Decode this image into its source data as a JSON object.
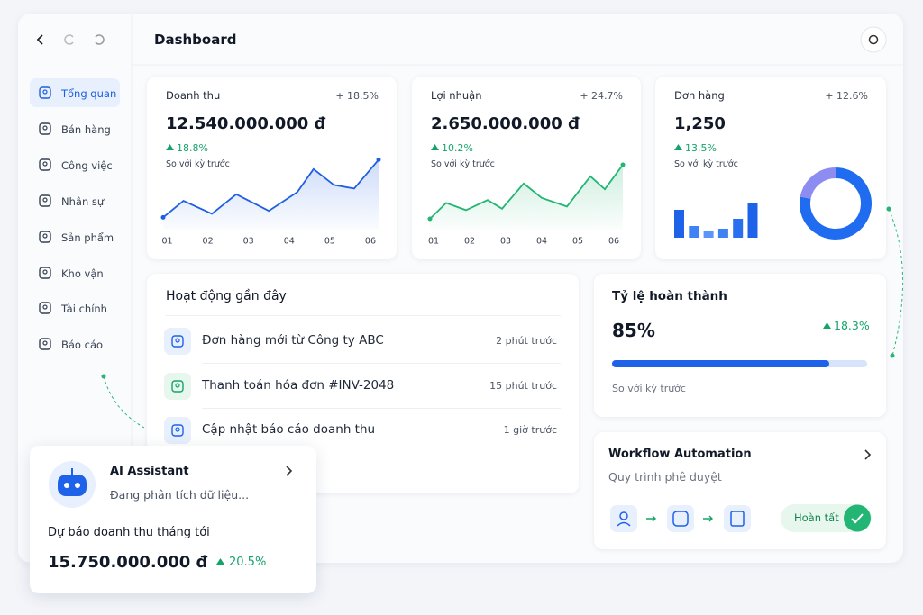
{
  "header": {
    "title": "Dashboard"
  },
  "sidebar": {
    "items": [
      "Tổng quan",
      "Bán hàng",
      "Công việc",
      "Nhân sự",
      "Sản phẩm",
      "Kho vận",
      "Tài chính",
      "Báo cáo"
    ]
  },
  "cards": [
    {
      "label": "Doanh thu",
      "change": "+ 18.5%",
      "value": "12.540.000.000 đ",
      "delta": "18.8%",
      "note": "So với kỳ trước",
      "chart": {
        "type": "line",
        "color": "#1f5fe0",
        "x": [
          0.9,
          1.4,
          2.1,
          2.7,
          3.5,
          4.2,
          4.6,
          5.1,
          5.6,
          6.2
        ],
        "values": [
          17,
          40,
          22,
          49,
          26,
          52,
          84,
          62,
          57,
          97
        ],
        "xlim": [
          0.9,
          6.2
        ],
        "ylim": [
          0,
          100
        ],
        "xticks": [
          {
            "value": 1,
            "label": "01"
          },
          {
            "value": 2,
            "label": "02"
          },
          {
            "value": 3,
            "label": "03"
          },
          {
            "value": 4,
            "label": "04"
          },
          {
            "value": 5,
            "label": "05"
          },
          {
            "value": 6,
            "label": "06"
          }
        ]
      }
    },
    {
      "label": "Lợi nhuận",
      "change": "+ 24.7%",
      "value": "2.650.000.000 đ",
      "delta": "10.2%",
      "note": "So với kỳ trước",
      "chart": {
        "type": "line",
        "color": "#22b573",
        "x": [
          0.9,
          1.35,
          1.9,
          2.5,
          2.9,
          3.5,
          4.0,
          4.7,
          5.35,
          5.75,
          6.25
        ],
        "values": [
          15,
          37,
          27,
          41,
          29,
          64,
          44,
          32,
          74,
          56,
          90
        ],
        "xlim": [
          0.9,
          6.25
        ],
        "ylim": [
          0,
          100
        ],
        "xticks": [
          {
            "value": 1,
            "label": "01"
          },
          {
            "value": 2,
            "label": "02"
          },
          {
            "value": 3,
            "label": "03"
          },
          {
            "value": 4,
            "label": "04"
          },
          {
            "value": 5,
            "label": "05"
          },
          {
            "value": 6,
            "label": "06"
          }
        ]
      }
    },
    {
      "label": "Đơn hàng",
      "change": "+ 12.6%",
      "value": "1,250",
      "delta": "13.5%",
      "note": "So với kỳ trước",
      "chart": {
        "type": "bar",
        "values": [
          31,
          13,
          8,
          10,
          21,
          39
        ],
        "ylim": [
          0,
          40
        ],
        "colors": [
          "#1f62ea",
          "#3f82f4",
          "#5b95f7",
          "#3f82f4",
          "#2a6ff0",
          "#1f62ea"
        ]
      },
      "donut": {
        "type": "pie",
        "values": [
          78,
          22
        ],
        "colors": [
          "#1f6cf0",
          "#8d8cf0"
        ]
      }
    }
  ],
  "activity": {
    "title": "Hoạt động gần đây",
    "items": [
      {
        "text": "Đơn hàng mới từ Công ty ABC",
        "time": "2 phút trước"
      },
      {
        "text": "Thanh toán hóa đơn #INV-2048",
        "time": "15 phút trước"
      },
      {
        "text": "Cập nhật báo cáo doanh thu",
        "time": "1 giờ trước"
      }
    ]
  },
  "completion": {
    "title": "Tỷ lệ hoàn thành",
    "value": 85,
    "label": "85%",
    "delta": "18.3%",
    "note": "So với kỳ trước"
  },
  "workflow": {
    "title": "Workflow Automation",
    "subtitle": "Quy trình phê duyệt",
    "status": "Hoàn tất"
  },
  "assistant": {
    "title": "AI Assistant",
    "status": "Đang phân tích dữ liệu...",
    "forecast_label": "Dự báo doanh thu tháng tới",
    "forecast_value": "15.750.000.000 đ",
    "forecast_delta": "20.5%"
  }
}
